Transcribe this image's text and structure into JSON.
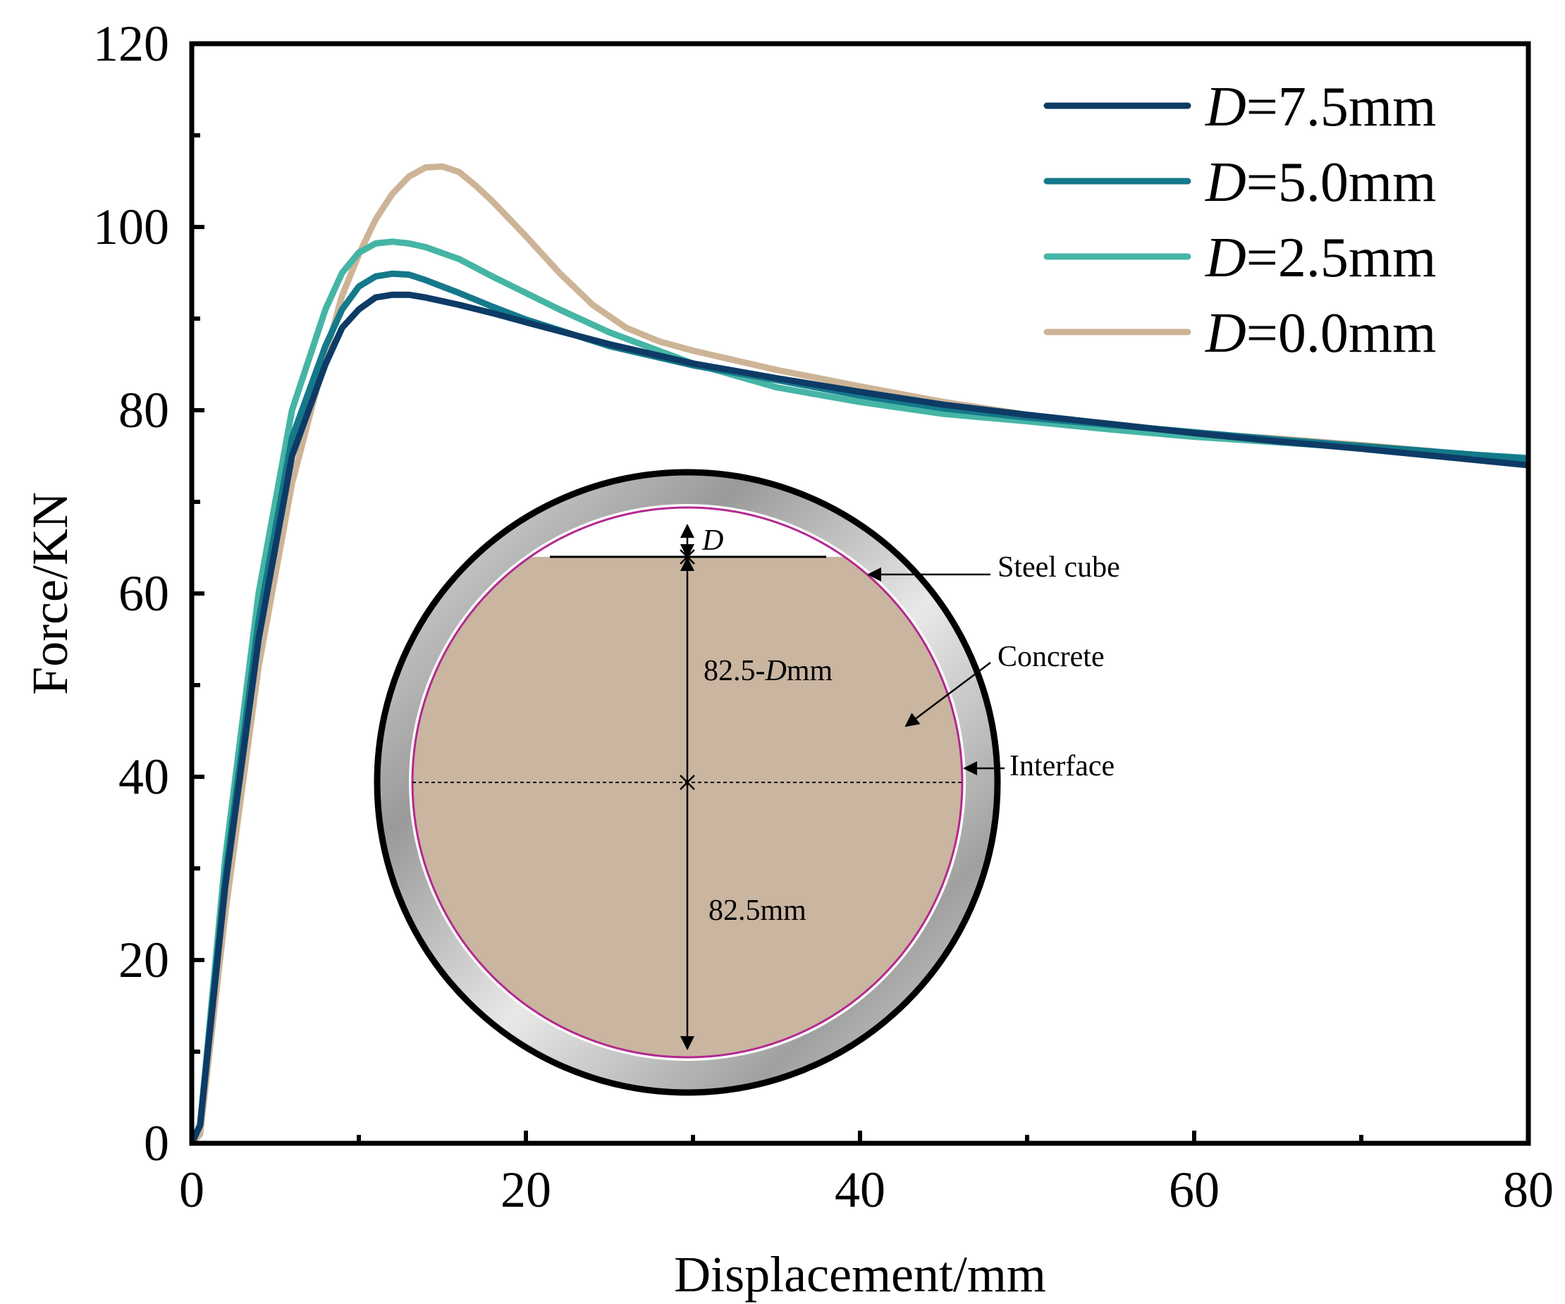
{
  "chart_data": {
    "type": "line",
    "title": "",
    "xlabel": "Displacement/mm",
    "ylabel": "Force/KN",
    "xlim": [
      0,
      80
    ],
    "ylim": [
      0,
      120
    ],
    "xticks": [
      "0",
      "20",
      "40",
      "60",
      "80"
    ],
    "yticks": [
      "0",
      "20",
      "40",
      "60",
      "80",
      "100",
      "120"
    ],
    "grid": false,
    "legend_position": "top-right",
    "series": [
      {
        "name": "D=7.5mm",
        "legend_var": "D",
        "legend_rest": "=7.5mm",
        "color": "#0d3b66",
        "x": [
          0,
          0.5,
          2,
          4,
          6,
          8,
          9,
          10,
          11,
          12,
          13,
          14,
          16,
          18,
          20,
          25,
          30,
          35,
          40,
          45,
          50,
          55,
          60,
          65,
          70,
          75,
          80
        ],
        "y": [
          0,
          2,
          28,
          55,
          75,
          85,
          89,
          91,
          92.3,
          92.6,
          92.6,
          92.3,
          91.5,
          90.6,
          89.6,
          87.2,
          85.1,
          83.5,
          82,
          80.6,
          79.5,
          78.5,
          77.5,
          76.6,
          75.8,
          74.9,
          74
        ]
      },
      {
        "name": "D=5.0mm",
        "legend_var": "D",
        "legend_rest": "=5.0mm",
        "color": "#14798a",
        "x": [
          0,
          0.5,
          2,
          4,
          6,
          8,
          9,
          10,
          11,
          12,
          13,
          14,
          16,
          18,
          20,
          25,
          30,
          35,
          40,
          45,
          50,
          55,
          60,
          65,
          70,
          75,
          80
        ],
        "y": [
          0,
          2,
          29,
          57,
          77,
          87,
          91,
          93.5,
          94.6,
          94.9,
          94.8,
          94.2,
          92.8,
          91.3,
          89.9,
          87,
          84.9,
          83.3,
          81.6,
          80.2,
          79.2,
          78.4,
          77.6,
          76.8,
          76.1,
          75.4,
          74.7
        ]
      },
      {
        "name": "D=2.5mm",
        "legend_var": "D",
        "legend_rest": "=2.5mm",
        "color": "#45b5a5",
        "x": [
          0,
          0.5,
          2,
          4,
          6,
          8,
          9,
          10,
          11,
          12,
          13,
          14,
          16,
          18,
          20,
          22,
          25,
          30,
          35,
          40,
          45,
          50,
          55,
          60,
          65,
          70,
          75,
          80
        ],
        "y": [
          0,
          2,
          31,
          60,
          80,
          91,
          95,
          97.2,
          98.2,
          98.4,
          98.2,
          97.8,
          96.5,
          94.6,
          92.8,
          91,
          88.5,
          85.1,
          82.5,
          80.9,
          79.6,
          78.8,
          77.9,
          77.1,
          76.5,
          75.9,
          75.3,
          74.8
        ]
      },
      {
        "name": "D=0.0mm",
        "legend_var": "D",
        "legend_rest": "=0.0mm",
        "color": "#cdb497",
        "x": [
          0,
          0.5,
          2,
          4,
          6,
          8,
          9,
          10,
          11,
          12,
          13,
          14,
          15,
          16,
          17,
          18,
          20,
          22,
          24,
          26,
          28,
          30,
          35,
          40,
          45,
          50,
          55,
          60,
          65,
          70,
          75,
          80
        ],
        "y": [
          0,
          1,
          25,
          52,
          72,
          86,
          92.5,
          97,
          100.8,
          103.6,
          105.5,
          106.5,
          106.6,
          106,
          104.5,
          102.8,
          99,
          95,
          91.5,
          89,
          87.5,
          86.5,
          84.4,
          82.6,
          80.9,
          79.5,
          78.5,
          77.5,
          76.9,
          76.2,
          75.4,
          74.5
        ]
      }
    ]
  },
  "inset": {
    "labels": {
      "d_var": "D",
      "top_dim_num": "82.5-",
      "top_dim_var": "D",
      "top_dim_unit": "mm",
      "bottom_dim": "82.5mm",
      "steel": "Steel cube",
      "concrete": "Concrete",
      "interface": "Interface"
    },
    "colors": {
      "concrete": "#c9b5a0",
      "interface": "#b4288f",
      "steel_light": "#e4e4e4",
      "steel_dark": "#8c8c8c"
    }
  }
}
